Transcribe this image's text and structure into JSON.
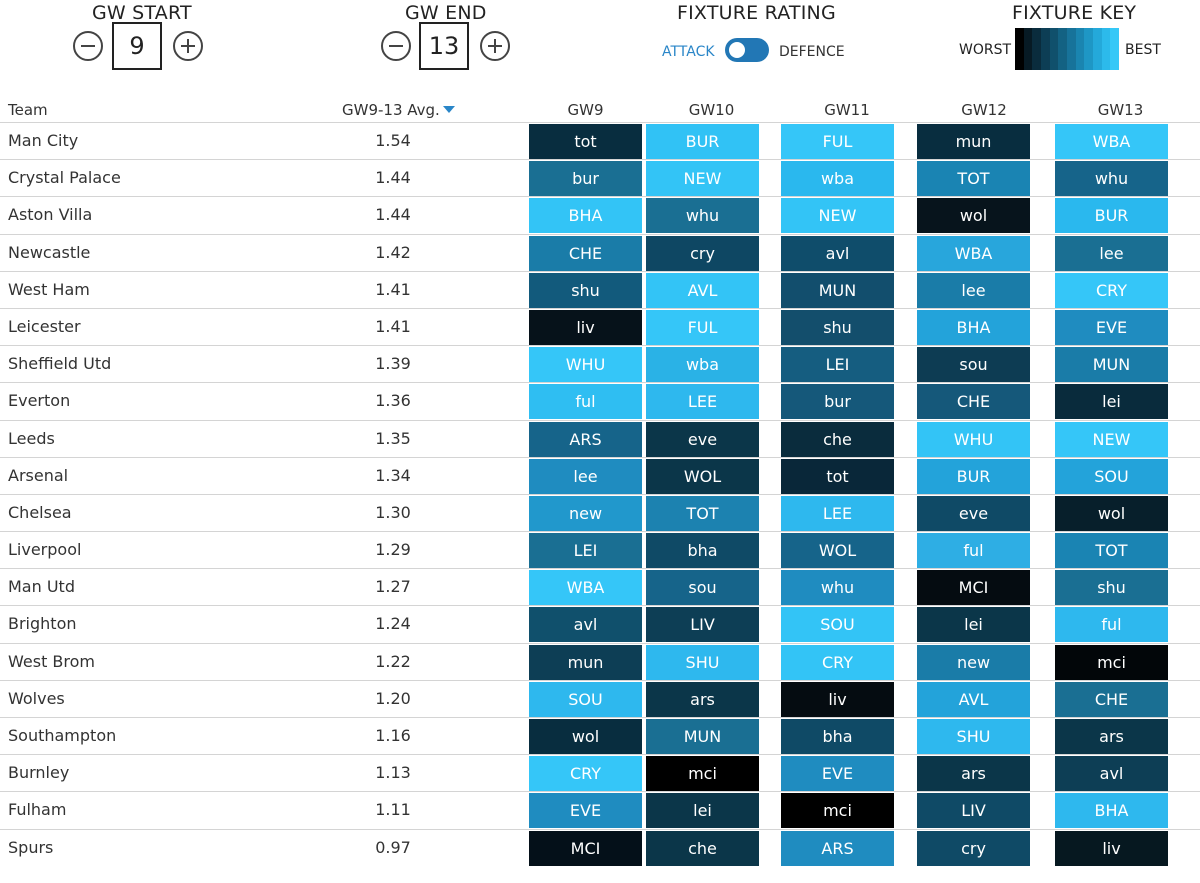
{
  "controls": {
    "gw_start": {
      "title": "GW START",
      "value": "9"
    },
    "gw_end": {
      "title": "GW END",
      "value": "13"
    },
    "rating": {
      "title": "FIXTURE RATING",
      "attack_label": "ATTACK",
      "defence_label": "DEFENCE",
      "selected": "ATTACK"
    },
    "key": {
      "title": "FIXTURE KEY",
      "worst_label": "WORST",
      "best_label": "BEST",
      "gradient": [
        "#000000",
        "#071a24",
        "#0a2c3d",
        "#0d3e55",
        "#10506c",
        "#136283",
        "#17739a",
        "#1a85b0",
        "#1e97c5",
        "#24a9da",
        "#2cbaeb",
        "#35c8f7"
      ]
    }
  },
  "table": {
    "headers": {
      "team": "Team",
      "avg": "GW9-13 Avg.",
      "gws": [
        "GW9",
        "GW10",
        "GW11",
        "GW12",
        "GW13"
      ]
    },
    "rows": [
      {
        "team": "Man City",
        "avg": "1.54",
        "fixtures": [
          {
            "t": "tot",
            "c": "#082d3f"
          },
          {
            "t": "BUR",
            "c": "#31c2f5"
          },
          {
            "t": "FUL",
            "c": "#35c6f8"
          },
          {
            "t": "mun",
            "c": "#082d3f"
          },
          {
            "t": "WBA",
            "c": "#35c6f8"
          }
        ]
      },
      {
        "team": "Crystal Palace",
        "avg": "1.44",
        "fixtures": [
          {
            "t": "bur",
            "c": "#1a6f93"
          },
          {
            "t": "NEW",
            "c": "#33c4f6"
          },
          {
            "t": "wba",
            "c": "#2ab8ee"
          },
          {
            "t": "TOT",
            "c": "#1a84b3"
          },
          {
            "t": "whu",
            "c": "#16648a"
          }
        ]
      },
      {
        "team": "Aston Villa",
        "avg": "1.44",
        "fixtures": [
          {
            "t": "BHA",
            "c": "#33c4f6"
          },
          {
            "t": "whu",
            "c": "#1a6f93"
          },
          {
            "t": "NEW",
            "c": "#33c4f6"
          },
          {
            "t": "wol",
            "c": "#07141c"
          },
          {
            "t": "BUR",
            "c": "#2ab8ee"
          }
        ]
      },
      {
        "team": "Newcastle",
        "avg": "1.42",
        "fixtures": [
          {
            "t": "CHE",
            "c": "#1a7ca8"
          },
          {
            "t": "cry",
            "c": "#0e4763"
          },
          {
            "t": "avl",
            "c": "#0f4d6b"
          },
          {
            "t": "WBA",
            "c": "#28a6dc"
          },
          {
            "t": "lee",
            "c": "#1a6f93"
          }
        ]
      },
      {
        "team": "West Ham",
        "avg": "1.41",
        "fixtures": [
          {
            "t": "shu",
            "c": "#125a7c"
          },
          {
            "t": "AVL",
            "c": "#33c4f6"
          },
          {
            "t": "MUN",
            "c": "#124e6d"
          },
          {
            "t": "lee",
            "c": "#1a7ca8"
          },
          {
            "t": "CRY",
            "c": "#35c6f8"
          }
        ]
      },
      {
        "team": "Leicester",
        "avg": "1.41",
        "fixtures": [
          {
            "t": "liv",
            "c": "#06121a"
          },
          {
            "t": "FUL",
            "c": "#35c6f8"
          },
          {
            "t": "shu",
            "c": "#134e6c"
          },
          {
            "t": "BHA",
            "c": "#23a3da"
          },
          {
            "t": "EVE",
            "c": "#1f8cc0"
          }
        ]
      },
      {
        "team": "Sheffield Utd",
        "avg": "1.39",
        "fixtures": [
          {
            "t": "WHU",
            "c": "#35c6f8"
          },
          {
            "t": "wba",
            "c": "#2ab2e6"
          },
          {
            "t": "LEI",
            "c": "#155d80"
          },
          {
            "t": "sou",
            "c": "#0d3c53"
          },
          {
            "t": "MUN",
            "c": "#1a7ca8"
          }
        ]
      },
      {
        "team": "Everton",
        "avg": "1.36",
        "fixtures": [
          {
            "t": "ful",
            "c": "#2fbef2"
          },
          {
            "t": "LEE",
            "c": "#2eb8ee"
          },
          {
            "t": "bur",
            "c": "#15587a"
          },
          {
            "t": "CHE",
            "c": "#15587a"
          },
          {
            "t": "lei",
            "c": "#092b3c"
          }
        ]
      },
      {
        "team": "Leeds",
        "avg": "1.35",
        "fixtures": [
          {
            "t": "ARS",
            "c": "#16648a"
          },
          {
            "t": "eve",
            "c": "#0b3649"
          },
          {
            "t": "che",
            "c": "#0a2c3d"
          },
          {
            "t": "WHU",
            "c": "#33c4f6"
          },
          {
            "t": "NEW",
            "c": "#35c6f8"
          }
        ]
      },
      {
        "team": "Arsenal",
        "avg": "1.34",
        "fixtures": [
          {
            "t": "lee",
            "c": "#1f8cc0"
          },
          {
            "t": "WOL",
            "c": "#0b3649"
          },
          {
            "t": "tot",
            "c": "#092739"
          },
          {
            "t": "BUR",
            "c": "#23a3da"
          },
          {
            "t": "SOU",
            "c": "#23a3da"
          }
        ]
      },
      {
        "team": "Chelsea",
        "avg": "1.30",
        "fixtures": [
          {
            "t": "new",
            "c": "#2198cc"
          },
          {
            "t": "TOT",
            "c": "#1c82b0"
          },
          {
            "t": "LEE",
            "c": "#2eb8ee"
          },
          {
            "t": "eve",
            "c": "#0f4a66"
          },
          {
            "t": "wol",
            "c": "#071f2b"
          }
        ]
      },
      {
        "team": "Liverpool",
        "avg": "1.29",
        "fixtures": [
          {
            "t": "LEI",
            "c": "#1a6f93"
          },
          {
            "t": "bha",
            "c": "#0f4a66"
          },
          {
            "t": "WOL",
            "c": "#16648a"
          },
          {
            "t": "ful",
            "c": "#2eaee4"
          },
          {
            "t": "TOT",
            "c": "#1a84b3"
          }
        ]
      },
      {
        "team": "Man Utd",
        "avg": "1.27",
        "fixtures": [
          {
            "t": "WBA",
            "c": "#35c6f8"
          },
          {
            "t": "sou",
            "c": "#16648a"
          },
          {
            "t": "whu",
            "c": "#1f8cc0"
          },
          {
            "t": "MCI",
            "c": "#050c11"
          },
          {
            "t": "shu",
            "c": "#1a6f93"
          }
        ]
      },
      {
        "team": "Brighton",
        "avg": "1.24",
        "fixtures": [
          {
            "t": "avl",
            "c": "#10506c"
          },
          {
            "t": "LIV",
            "c": "#0d3e55"
          },
          {
            "t": "SOU",
            "c": "#33c4f6"
          },
          {
            "t": "lei",
            "c": "#0b3649"
          },
          {
            "t": "ful",
            "c": "#2eb8ee"
          }
        ]
      },
      {
        "team": "West Brom",
        "avg": "1.22",
        "fixtures": [
          {
            "t": "mun",
            "c": "#0d3e55"
          },
          {
            "t": "SHU",
            "c": "#2eb8ee"
          },
          {
            "t": "CRY",
            "c": "#33c4f6"
          },
          {
            "t": "new",
            "c": "#1a7ca8"
          },
          {
            "t": "mci",
            "c": "#020609"
          }
        ]
      },
      {
        "team": "Wolves",
        "avg": "1.20",
        "fixtures": [
          {
            "t": "SOU",
            "c": "#2eb8ee"
          },
          {
            "t": "ars",
            "c": "#0b3649"
          },
          {
            "t": "liv",
            "c": "#050c11"
          },
          {
            "t": "AVL",
            "c": "#23a3da"
          },
          {
            "t": "CHE",
            "c": "#1a6f93"
          }
        ]
      },
      {
        "team": "Southampton",
        "avg": "1.16",
        "fixtures": [
          {
            "t": "wol",
            "c": "#082d3f"
          },
          {
            "t": "MUN",
            "c": "#1a6f93"
          },
          {
            "t": "bha",
            "c": "#0f4a66"
          },
          {
            "t": "SHU",
            "c": "#2eb8ee"
          },
          {
            "t": "ars",
            "c": "#0b3649"
          }
        ]
      },
      {
        "team": "Burnley",
        "avg": "1.13",
        "fixtures": [
          {
            "t": "CRY",
            "c": "#35c6f8"
          },
          {
            "t": "mci",
            "c": "#000000"
          },
          {
            "t": "EVE",
            "c": "#1f8cc0"
          },
          {
            "t": "ars",
            "c": "#0b3649"
          },
          {
            "t": "avl",
            "c": "#0d3e55"
          }
        ]
      },
      {
        "team": "Fulham",
        "avg": "1.11",
        "fixtures": [
          {
            "t": "EVE",
            "c": "#1f8cc0"
          },
          {
            "t": "lei",
            "c": "#0b3649"
          },
          {
            "t": "mci",
            "c": "#000000"
          },
          {
            "t": "LIV",
            "c": "#0f4a66"
          },
          {
            "t": "BHA",
            "c": "#2eb8ee"
          }
        ]
      },
      {
        "team": "Spurs",
        "avg": "0.97",
        "fixtures": [
          {
            "t": "MCI",
            "c": "#041019"
          },
          {
            "t": "che",
            "c": "#0b3649"
          },
          {
            "t": "ARS",
            "c": "#1f8cc0"
          },
          {
            "t": "cry",
            "c": "#0f4a66"
          },
          {
            "t": "liv",
            "c": "#061820"
          }
        ]
      }
    ]
  }
}
